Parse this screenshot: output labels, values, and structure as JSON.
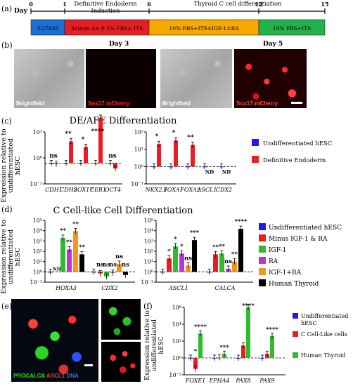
{
  "panel_labels": {
    "a": "(a)",
    "b": "(b)",
    "c": "(c)",
    "d": "(d)",
    "e": "(e)",
    "f": "(f)"
  },
  "timeline": {
    "day_label": "Day",
    "days": [
      "0",
      "1",
      "6",
      "12",
      "15"
    ],
    "stage_headers": [
      "Definitive Endoderm\nInduction",
      "Thyroid C cell differentiation"
    ],
    "segments": [
      {
        "text": "Y-27632",
        "color": "#1a6fd6"
      },
      {
        "text": "Activin A+ 0.5% FBS± ITS",
        "color": "#e51e26"
      },
      {
        "text": "10% FBS+ITS±IGF-1±RA",
        "color": "#f6a800"
      },
      {
        "text": "10% FBS+ITS",
        "color": "#22b24c"
      }
    ]
  },
  "micrographs": {
    "day3": "Day 3",
    "day5": "Day 5",
    "brightfield": "Brightfield",
    "sox17": "Sox17:mCherry"
  },
  "ylabel": "Expression relative to undifferentiated hESC",
  "chart_c": {
    "title": "DE/AFE Differentiation",
    "legend": [
      "Undifferentiated hESC",
      "Definitive Endoderm"
    ],
    "left": {
      "type": "bar",
      "categories": [
        "CDH1",
        "CDH2",
        "SOX17",
        "CER1",
        "OCT4"
      ],
      "yticks": [
        "10¹",
        "10⁰",
        "10⁻¹"
      ],
      "series": [
        {
          "name": "Undifferentiated hESC",
          "values": [
            1,
            1,
            1,
            1,
            1
          ]
        },
        {
          "name": "Definitive Endoderm",
          "values": [
            0.9,
            11,
            6,
            150,
            0.55
          ]
        }
      ],
      "sig": [
        "ns",
        "**",
        "*",
        "****",
        "ns"
      ]
    },
    "right": {
      "type": "bar",
      "categories": [
        "NKX2.1",
        "FOXA1",
        "FOXA2",
        "ASCL1",
        "CDX2"
      ],
      "yticks": [
        "10²",
        "10¹",
        "10⁰",
        "10⁻¹"
      ],
      "series": [
        {
          "name": "Undifferentiated hESC",
          "values": [
            1,
            1,
            1,
            1,
            1
          ]
        },
        {
          "name": "Definitive Endoderm",
          "values": [
            20,
            32,
            18,
            null,
            null
          ]
        }
      ],
      "sig": [
        "*",
        "*",
        "**",
        "ND",
        "ND"
      ]
    }
  },
  "chart_d": {
    "title": "C Cell-like Cell Differentiation",
    "legend": [
      "Undifferentiated hESC",
      "Minus IGF-1 & RA",
      "IGF-1",
      "RA",
      "IGF-1+RA",
      "Human Thyroid"
    ],
    "colors": [
      "#1b1bf0",
      "#ec1c24",
      "#2fbb2f",
      "#bd33d9",
      "#f7941d",
      "#000000"
    ],
    "left": {
      "type": "bar",
      "categories": [
        "HOXA3",
        "CDX2"
      ],
      "yticks": [
        "10⁵",
        "10⁴",
        "10³",
        "10²",
        "10¹",
        "10⁰",
        "10⁻¹"
      ],
      "series": [
        {
          "name": "Undifferentiated hESC",
          "values": [
            1,
            1
          ]
        },
        {
          "name": "Minus IGF-1 & RA",
          "values": [
            null,
            0.7
          ]
        },
        {
          "name": "IGF-1",
          "values": [
            2000,
            0.35
          ]
        },
        {
          "name": "RA",
          "values": [
            150,
            0.8
          ]
        },
        {
          "name": "IGF-1+RA",
          "values": [
            9000,
            6
          ]
        },
        {
          "name": "Human Thyroid",
          "values": [
            50,
            0.5
          ]
        }
      ],
      "sig": [
        [
          "ND",
          "**",
          "**",
          "**",
          "**"
        ],
        [
          "ns",
          "ns",
          "ns",
          "ns",
          "ns"
        ]
      ]
    },
    "right": {
      "type": "bar",
      "categories": [
        "ASCL1",
        "CALCA"
      ],
      "yticks": [
        "10⁵",
        "10⁴",
        "10³",
        "10²",
        "10¹",
        "10⁰",
        "10⁻¹"
      ],
      "series": [
        {
          "name": "Undifferentiated hESC",
          "values": [
            1,
            1
          ]
        },
        {
          "name": "Minus IGF-1 & RA",
          "values": [
            20,
            50
          ]
        },
        {
          "name": "IGF-1",
          "values": [
            300,
            60
          ]
        },
        {
          "name": "RA",
          "values": [
            60,
            2
          ]
        },
        {
          "name": "IGF-1+RA",
          "values": [
            4,
            10
          ]
        },
        {
          "name": "Human Thyroid",
          "values": [
            1200,
            15000
          ]
        }
      ],
      "sig": [
        [
          "*",
          "*",
          "*",
          "ns",
          "***"
        ],
        [
          "**",
          "**",
          "ns",
          "**",
          "****"
        ]
      ]
    }
  },
  "panel_e": {
    "caption_parts": [
      "PROCALCA",
      "ASCL1",
      "DNA"
    ],
    "caption_colors": [
      "#22dd22",
      "#ff3333",
      "#3b6cff"
    ]
  },
  "chart_f": {
    "type": "bar",
    "legend": [
      "Undifferentiated hESC",
      "C Cell-Like cells",
      "Human Thyroid"
    ],
    "colors": [
      "#1b1bf0",
      "#ec1c24",
      "#2fbb2f"
    ],
    "categories": [
      "FOXE1",
      "EPHA4",
      "PAX8",
      "PAX9"
    ],
    "yticks": [
      "10⁶",
      "10⁴",
      "10²",
      "10⁰",
      "10⁻²"
    ],
    "series": [
      {
        "name": "Undifferentiated hESC",
        "values": [
          1,
          1,
          1,
          1
        ]
      },
      {
        "name": "C Cell-Like cells",
        "values": [
          0.05,
          1.1,
          30,
          3
        ]
      },
      {
        "name": "Human Thyroid",
        "values": [
          800,
          3,
          1000000,
          400
        ]
      }
    ],
    "sig": [
      [
        "*",
        "****"
      ],
      [
        "",
        "***"
      ],
      [
        "",
        "****"
      ],
      [
        "",
        "****"
      ]
    ]
  }
}
